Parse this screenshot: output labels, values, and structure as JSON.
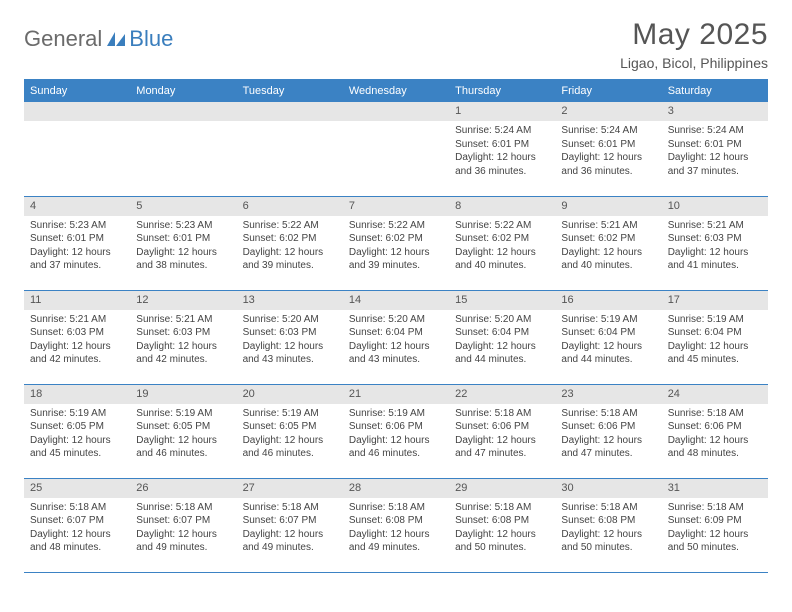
{
  "logo": {
    "part1": "General",
    "part2": "Blue"
  },
  "title": {
    "month": "May 2025",
    "location": "Ligao, Bicol, Philippines"
  },
  "colors": {
    "header_bg": "#3b82c4",
    "header_text": "#ffffff",
    "daynum_bg": "#e6e6e6",
    "daynum_text": "#555555",
    "body_text": "#444444",
    "rule": "#3b82c4",
    "logo_gray": "#6b6b6b",
    "logo_blue": "#3a7ebd",
    "page_bg": "#ffffff"
  },
  "day_names": [
    "Sunday",
    "Monday",
    "Tuesday",
    "Wednesday",
    "Thursday",
    "Friday",
    "Saturday"
  ],
  "weeks": [
    [
      {
        "blank": true
      },
      {
        "blank": true
      },
      {
        "blank": true
      },
      {
        "blank": true
      },
      {
        "n": "1",
        "sr": "Sunrise: 5:24 AM",
        "ss": "Sunset: 6:01 PM",
        "d1": "Daylight: 12 hours",
        "d2": "and 36 minutes."
      },
      {
        "n": "2",
        "sr": "Sunrise: 5:24 AM",
        "ss": "Sunset: 6:01 PM",
        "d1": "Daylight: 12 hours",
        "d2": "and 36 minutes."
      },
      {
        "n": "3",
        "sr": "Sunrise: 5:24 AM",
        "ss": "Sunset: 6:01 PM",
        "d1": "Daylight: 12 hours",
        "d2": "and 37 minutes."
      }
    ],
    [
      {
        "n": "4",
        "sr": "Sunrise: 5:23 AM",
        "ss": "Sunset: 6:01 PM",
        "d1": "Daylight: 12 hours",
        "d2": "and 37 minutes."
      },
      {
        "n": "5",
        "sr": "Sunrise: 5:23 AM",
        "ss": "Sunset: 6:01 PM",
        "d1": "Daylight: 12 hours",
        "d2": "and 38 minutes."
      },
      {
        "n": "6",
        "sr": "Sunrise: 5:22 AM",
        "ss": "Sunset: 6:02 PM",
        "d1": "Daylight: 12 hours",
        "d2": "and 39 minutes."
      },
      {
        "n": "7",
        "sr": "Sunrise: 5:22 AM",
        "ss": "Sunset: 6:02 PM",
        "d1": "Daylight: 12 hours",
        "d2": "and 39 minutes."
      },
      {
        "n": "8",
        "sr": "Sunrise: 5:22 AM",
        "ss": "Sunset: 6:02 PM",
        "d1": "Daylight: 12 hours",
        "d2": "and 40 minutes."
      },
      {
        "n": "9",
        "sr": "Sunrise: 5:21 AM",
        "ss": "Sunset: 6:02 PM",
        "d1": "Daylight: 12 hours",
        "d2": "and 40 minutes."
      },
      {
        "n": "10",
        "sr": "Sunrise: 5:21 AM",
        "ss": "Sunset: 6:03 PM",
        "d1": "Daylight: 12 hours",
        "d2": "and 41 minutes."
      }
    ],
    [
      {
        "n": "11",
        "sr": "Sunrise: 5:21 AM",
        "ss": "Sunset: 6:03 PM",
        "d1": "Daylight: 12 hours",
        "d2": "and 42 minutes."
      },
      {
        "n": "12",
        "sr": "Sunrise: 5:21 AM",
        "ss": "Sunset: 6:03 PM",
        "d1": "Daylight: 12 hours",
        "d2": "and 42 minutes."
      },
      {
        "n": "13",
        "sr": "Sunrise: 5:20 AM",
        "ss": "Sunset: 6:03 PM",
        "d1": "Daylight: 12 hours",
        "d2": "and 43 minutes."
      },
      {
        "n": "14",
        "sr": "Sunrise: 5:20 AM",
        "ss": "Sunset: 6:04 PM",
        "d1": "Daylight: 12 hours",
        "d2": "and 43 minutes."
      },
      {
        "n": "15",
        "sr": "Sunrise: 5:20 AM",
        "ss": "Sunset: 6:04 PM",
        "d1": "Daylight: 12 hours",
        "d2": "and 44 minutes."
      },
      {
        "n": "16",
        "sr": "Sunrise: 5:19 AM",
        "ss": "Sunset: 6:04 PM",
        "d1": "Daylight: 12 hours",
        "d2": "and 44 minutes."
      },
      {
        "n": "17",
        "sr": "Sunrise: 5:19 AM",
        "ss": "Sunset: 6:04 PM",
        "d1": "Daylight: 12 hours",
        "d2": "and 45 minutes."
      }
    ],
    [
      {
        "n": "18",
        "sr": "Sunrise: 5:19 AM",
        "ss": "Sunset: 6:05 PM",
        "d1": "Daylight: 12 hours",
        "d2": "and 45 minutes."
      },
      {
        "n": "19",
        "sr": "Sunrise: 5:19 AM",
        "ss": "Sunset: 6:05 PM",
        "d1": "Daylight: 12 hours",
        "d2": "and 46 minutes."
      },
      {
        "n": "20",
        "sr": "Sunrise: 5:19 AM",
        "ss": "Sunset: 6:05 PM",
        "d1": "Daylight: 12 hours",
        "d2": "and 46 minutes."
      },
      {
        "n": "21",
        "sr": "Sunrise: 5:19 AM",
        "ss": "Sunset: 6:06 PM",
        "d1": "Daylight: 12 hours",
        "d2": "and 46 minutes."
      },
      {
        "n": "22",
        "sr": "Sunrise: 5:18 AM",
        "ss": "Sunset: 6:06 PM",
        "d1": "Daylight: 12 hours",
        "d2": "and 47 minutes."
      },
      {
        "n": "23",
        "sr": "Sunrise: 5:18 AM",
        "ss": "Sunset: 6:06 PM",
        "d1": "Daylight: 12 hours",
        "d2": "and 47 minutes."
      },
      {
        "n": "24",
        "sr": "Sunrise: 5:18 AM",
        "ss": "Sunset: 6:06 PM",
        "d1": "Daylight: 12 hours",
        "d2": "and 48 minutes."
      }
    ],
    [
      {
        "n": "25",
        "sr": "Sunrise: 5:18 AM",
        "ss": "Sunset: 6:07 PM",
        "d1": "Daylight: 12 hours",
        "d2": "and 48 minutes."
      },
      {
        "n": "26",
        "sr": "Sunrise: 5:18 AM",
        "ss": "Sunset: 6:07 PM",
        "d1": "Daylight: 12 hours",
        "d2": "and 49 minutes."
      },
      {
        "n": "27",
        "sr": "Sunrise: 5:18 AM",
        "ss": "Sunset: 6:07 PM",
        "d1": "Daylight: 12 hours",
        "d2": "and 49 minutes."
      },
      {
        "n": "28",
        "sr": "Sunrise: 5:18 AM",
        "ss": "Sunset: 6:08 PM",
        "d1": "Daylight: 12 hours",
        "d2": "and 49 minutes."
      },
      {
        "n": "29",
        "sr": "Sunrise: 5:18 AM",
        "ss": "Sunset: 6:08 PM",
        "d1": "Daylight: 12 hours",
        "d2": "and 50 minutes."
      },
      {
        "n": "30",
        "sr": "Sunrise: 5:18 AM",
        "ss": "Sunset: 6:08 PM",
        "d1": "Daylight: 12 hours",
        "d2": "and 50 minutes."
      },
      {
        "n": "31",
        "sr": "Sunrise: 5:18 AM",
        "ss": "Sunset: 6:09 PM",
        "d1": "Daylight: 12 hours",
        "d2": "and 50 minutes."
      }
    ]
  ]
}
